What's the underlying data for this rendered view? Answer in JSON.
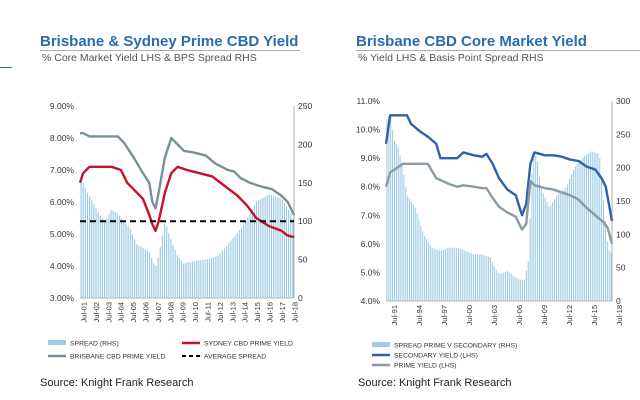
{
  "left_panel": {
    "title": "Brisbane & Sydney Prime CBD Yield",
    "subtitle": "% Core Market Yield LHS & BPS Spread RHS",
    "source": "Source: Knight Frank Research"
  },
  "right_panel": {
    "title": "Brisbane CBD Core Market Yield",
    "subtitle": "% Yield LHS & Basis Point Spread RHS",
    "source": "Source: Knight Frank Research"
  },
  "colors": {
    "title": "#2a6cb0",
    "spread_bars": "#9dcbe4",
    "sydney_line": "#c8102e",
    "brisbane_line": "#7a9098",
    "average_line": "#000000",
    "secondary_line": "#2f62a8",
    "prime_line": "#8a9ba3"
  },
  "chart_data": [
    {
      "type": "bar+line",
      "title": "Brisbane & Sydney Prime CBD Yield",
      "subtitle": "% Core Market Yield LHS & BPS Spread RHS",
      "ylim_left": [
        3.0,
        9.0
      ],
      "yticks_left": [
        "3.00%",
        "4.00%",
        "5.00%",
        "6.00%",
        "7.00%",
        "8.00%",
        "9.00%"
      ],
      "ylim_right": [
        0,
        250
      ],
      "yticks_right": [
        "0",
        "50",
        "100",
        "150",
        "200",
        "250"
      ],
      "x_start": 2001.5,
      "x_end": 2018.5,
      "xticks": [
        "Jul-01",
        "Jul-02",
        "Jul-03",
        "Jul-04",
        "Jul-05",
        "Jul-06",
        "Jul-07",
        "Jul-08",
        "Jul-09",
        "Jul-10",
        "Jul-11",
        "Jul-12",
        "Jul-13",
        "Jul-14",
        "Jul-15",
        "Jul-16",
        "Jul-17",
        "Jul-18"
      ],
      "legend": [
        "SPREAD (RHS)",
        "SYDNEY CBD PRIME YIELD",
        "BRISBANE CBD PRIME YIELD",
        "AVERAGE SPREAD"
      ],
      "series": [
        {
          "name": "SPREAD (RHS)",
          "type": "bar",
          "axis": "right",
          "points": [
            [
              2001.5,
              160
            ],
            [
              2002.0,
              140
            ],
            [
              2002.5,
              125
            ],
            [
              2003.0,
              110
            ],
            [
              2003.5,
              100
            ],
            [
              2004.0,
              115
            ],
            [
              2004.5,
              110
            ],
            [
              2005.0,
              100
            ],
            [
              2005.5,
              90
            ],
            [
              2006.0,
              70
            ],
            [
              2006.5,
              65
            ],
            [
              2007.0,
              60
            ],
            [
              2007.5,
              40
            ],
            [
              2007.75,
              55
            ],
            [
              2008.25,
              100
            ],
            [
              2008.75,
              75
            ],
            [
              2009.25,
              55
            ],
            [
              2009.75,
              45
            ],
            [
              2010.5,
              48
            ],
            [
              2011.5,
              50
            ],
            [
              2012.5,
              55
            ],
            [
              2013.5,
              75
            ],
            [
              2014.5,
              95
            ],
            [
              2015.5,
              125
            ],
            [
              2016.5,
              135
            ],
            [
              2017.5,
              130
            ],
            [
              2018.25,
              110
            ],
            [
              2018.5,
              100
            ]
          ]
        },
        {
          "name": "SYDNEY CBD PRIME YIELD",
          "type": "line",
          "axis": "left",
          "points": [
            [
              2001.5,
              6.6
            ],
            [
              2001.75,
              6.9
            ],
            [
              2002.25,
              7.1
            ],
            [
              2003.0,
              7.1
            ],
            [
              2004.0,
              7.1
            ],
            [
              2004.75,
              7.0
            ],
            [
              2005.25,
              6.6
            ],
            [
              2005.75,
              6.4
            ],
            [
              2006.5,
              6.1
            ],
            [
              2007.0,
              5.6
            ],
            [
              2007.25,
              5.3
            ],
            [
              2007.5,
              5.1
            ],
            [
              2007.75,
              5.4
            ],
            [
              2008.25,
              6.3
            ],
            [
              2008.75,
              6.9
            ],
            [
              2009.25,
              7.1
            ],
            [
              2010.0,
              7.0
            ],
            [
              2011.0,
              6.9
            ],
            [
              2012.0,
              6.8
            ],
            [
              2013.0,
              6.5
            ],
            [
              2014.0,
              6.2
            ],
            [
              2014.75,
              5.9
            ],
            [
              2015.5,
              5.5
            ],
            [
              2016.5,
              5.25
            ],
            [
              2017.5,
              5.1
            ],
            [
              2018.0,
              4.95
            ],
            [
              2018.5,
              4.9
            ]
          ]
        },
        {
          "name": "BRISBANE CBD PRIME YIELD",
          "type": "line",
          "axis": "left",
          "points": [
            [
              2001.5,
              8.15
            ],
            [
              2001.75,
              8.15
            ],
            [
              2002.25,
              8.05
            ],
            [
              2003.0,
              8.05
            ],
            [
              2004.0,
              8.05
            ],
            [
              2004.5,
              8.05
            ],
            [
              2005.0,
              7.85
            ],
            [
              2005.75,
              7.4
            ],
            [
              2006.5,
              6.9
            ],
            [
              2007.0,
              6.6
            ],
            [
              2007.25,
              6.0
            ],
            [
              2007.5,
              5.8
            ],
            [
              2007.75,
              6.3
            ],
            [
              2008.25,
              7.4
            ],
            [
              2008.75,
              8.0
            ],
            [
              2009.25,
              7.8
            ],
            [
              2009.75,
              7.6
            ],
            [
              2010.5,
              7.55
            ],
            [
              2011.5,
              7.45
            ],
            [
              2012.25,
              7.2
            ],
            [
              2013.25,
              7.0
            ],
            [
              2013.75,
              6.95
            ],
            [
              2014.25,
              6.75
            ],
            [
              2015.0,
              6.6
            ],
            [
              2015.75,
              6.5
            ],
            [
              2016.75,
              6.4
            ],
            [
              2017.5,
              6.2
            ],
            [
              2018.0,
              6.0
            ],
            [
              2018.5,
              5.6
            ]
          ]
        },
        {
          "name": "AVERAGE SPREAD",
          "type": "line",
          "axis": "right",
          "style": "dashed",
          "points": [
            [
              2001.5,
              100
            ],
            [
              2018.5,
              100
            ]
          ]
        }
      ]
    },
    {
      "type": "bar+line",
      "title": "Brisbane CBD Core Market Yield",
      "subtitle": "% Yield LHS & Basis Point Spread RHS",
      "ylim_left": [
        4.0,
        11.0
      ],
      "yticks_left": [
        "4.0%",
        "5.0%",
        "6.0%",
        "7.0%",
        "8.0%",
        "9.0%",
        "10.0%",
        "11.0%"
      ],
      "ylim_right": [
        0,
        300
      ],
      "yticks_right": [
        "0",
        "50",
        "100",
        "150",
        "200",
        "250",
        "300"
      ],
      "x_start": 1991.5,
      "x_end": 2018.5,
      "xticks": [
        "Jul-91",
        "Jul-94",
        "Jul-97",
        "Jul-00",
        "Jul-03",
        "Jul-06",
        "Jul-09",
        "Jul-12",
        "Jul-15",
        "Jul-18"
      ],
      "legend": [
        "SPREAD PRIME V SECONDARY (RHS)",
        "SECONDARY YIELD (LHS)",
        "PRIME YIELD (LHS)"
      ],
      "series": [
        {
          "name": "SPREAD PRIME V SECONDARY (RHS)",
          "type": "bar",
          "axis": "right",
          "points": [
            [
              1991.5,
              270
            ],
            [
              1992.0,
              280
            ],
            [
              1992.5,
              240
            ],
            [
              1993.0,
              230
            ],
            [
              1993.5,
              200
            ],
            [
              1994.0,
              160
            ],
            [
              1994.5,
              150
            ],
            [
              1995.0,
              140
            ],
            [
              1995.5,
              120
            ],
            [
              1996.0,
              100
            ],
            [
              1996.5,
              90
            ],
            [
              1997.0,
              80
            ],
            [
              1998.0,
              75
            ],
            [
              1999.0,
              80
            ],
            [
              2000.0,
              80
            ],
            [
              2001.0,
              75
            ],
            [
              2002.0,
              70
            ],
            [
              2003.0,
              70
            ],
            [
              2004.0,
              65
            ],
            [
              2004.5,
              50
            ],
            [
              2005.0,
              40
            ],
            [
              2006.0,
              45
            ],
            [
              2007.0,
              35
            ],
            [
              2008.0,
              30
            ],
            [
              2008.5,
              60
            ],
            [
              2009.0,
              210
            ],
            [
              2009.5,
              220
            ],
            [
              2010.0,
              170
            ],
            [
              2011.0,
              140
            ],
            [
              2012.0,
              160
            ],
            [
              2013.0,
              170
            ],
            [
              2014.0,
              200
            ],
            [
              2015.0,
              215
            ],
            [
              2016.0,
              225
            ],
            [
              2017.0,
              220
            ],
            [
              2017.5,
              150
            ],
            [
              2018.0,
              80
            ],
            [
              2018.5,
              70
            ]
          ]
        },
        {
          "name": "SECONDARY YIELD (LHS)",
          "type": "line",
          "axis": "left",
          "points": [
            [
              1991.5,
              9.5
            ],
            [
              1992.0,
              10.5
            ],
            [
              1993.0,
              10.5
            ],
            [
              1994.0,
              10.5
            ],
            [
              1994.5,
              10.2
            ],
            [
              1995.5,
              9.95
            ],
            [
              1996.5,
              9.75
            ],
            [
              1997.5,
              9.5
            ],
            [
              1998.0,
              9.0
            ],
            [
              2000.0,
              9.0
            ],
            [
              2000.75,
              9.2
            ],
            [
              2002.0,
              9.1
            ],
            [
              2003.0,
              9.05
            ],
            [
              2003.5,
              9.15
            ],
            [
              2004.25,
              8.8
            ],
            [
              2005.0,
              8.3
            ],
            [
              2006.0,
              7.9
            ],
            [
              2007.0,
              7.7
            ],
            [
              2007.75,
              7.0
            ],
            [
              2008.25,
              7.4
            ],
            [
              2008.75,
              8.8
            ],
            [
              2009.25,
              9.2
            ],
            [
              2010.5,
              9.1
            ],
            [
              2011.5,
              9.1
            ],
            [
              2012.5,
              9.05
            ],
            [
              2013.5,
              8.95
            ],
            [
              2014.5,
              8.9
            ],
            [
              2015.5,
              8.7
            ],
            [
              2016.5,
              8.6
            ],
            [
              2017.25,
              8.3
            ],
            [
              2017.75,
              8.0
            ],
            [
              2018.5,
              6.8
            ]
          ]
        },
        {
          "name": "PRIME YIELD (LHS)",
          "type": "line",
          "axis": "left",
          "points": [
            [
              1991.5,
              8.0
            ],
            [
              1992.0,
              8.5
            ],
            [
              1993.0,
              8.7
            ],
            [
              1993.5,
              8.8
            ],
            [
              1996.5,
              8.8
            ],
            [
              1997.5,
              8.3
            ],
            [
              1999.0,
              8.1
            ],
            [
              2000.0,
              8.0
            ],
            [
              2000.75,
              8.05
            ],
            [
              2002.0,
              8.0
            ],
            [
              2003.0,
              7.95
            ],
            [
              2003.5,
              7.95
            ],
            [
              2004.25,
              7.6
            ],
            [
              2005.0,
              7.3
            ],
            [
              2006.0,
              7.1
            ],
            [
              2007.0,
              6.95
            ],
            [
              2007.75,
              6.5
            ],
            [
              2008.25,
              6.7
            ],
            [
              2008.75,
              8.2
            ],
            [
              2009.25,
              8.05
            ],
            [
              2010.5,
              7.95
            ],
            [
              2011.5,
              7.9
            ],
            [
              2012.5,
              7.8
            ],
            [
              2013.5,
              7.7
            ],
            [
              2014.5,
              7.55
            ],
            [
              2015.5,
              7.25
            ],
            [
              2016.5,
              7.0
            ],
            [
              2017.5,
              6.75
            ],
            [
              2018.0,
              6.55
            ],
            [
              2018.5,
              6.0
            ]
          ]
        }
      ]
    }
  ]
}
